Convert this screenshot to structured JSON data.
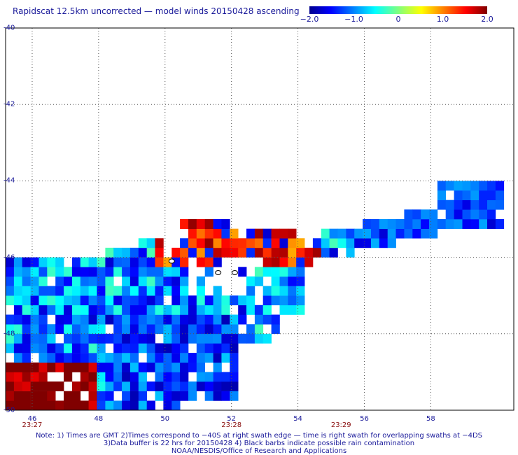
{
  "title": "Rapidscat 12.5km uncorrected — model winds 20150428 ascending",
  "colorbar": {
    "ticks": [
      {
        "value": -2.0,
        "label": "−2.0"
      },
      {
        "value": -1.0,
        "label": "−1.0"
      },
      {
        "value": 0,
        "label": "0"
      },
      {
        "value": 1.0,
        "label": "1.0"
      },
      {
        "value": 2.0,
        "label": "2.0"
      }
    ],
    "range": [
      -2.0,
      2.0
    ],
    "colormap": "jet"
  },
  "map": {
    "lon_range": [
      45.2,
      60.5
    ],
    "lat_range": [
      -50.0,
      -40.0
    ],
    "lat_ticks": [
      {
        "value": -40,
        "label": "-40"
      },
      {
        "value": -42,
        "label": "-42"
      },
      {
        "value": -44,
        "label": "-44"
      },
      {
        "value": -46,
        "label": "-46"
      },
      {
        "value": -48,
        "label": "-48"
      },
      {
        "value": -50,
        "label": "-50"
      }
    ],
    "lon_ticks": [
      {
        "value": 46,
        "label": "46"
      },
      {
        "value": 48,
        "label": "48"
      },
      {
        "value": 50,
        "label": "50"
      },
      {
        "value": 52,
        "label": "52"
      },
      {
        "value": 54,
        "label": "54"
      },
      {
        "value": 56,
        "label": "56"
      },
      {
        "value": 58,
        "label": "58"
      }
    ],
    "time_labels": [
      {
        "lon": 46,
        "label": "23:27"
      },
      {
        "lon": 52,
        "label": "23:28"
      },
      {
        "lon": 55.3,
        "label": "23:29"
      }
    ],
    "grid": true,
    "cell_size_deg": 0.25
  },
  "notes": [
    "Note: 1) Times are GMT 2)Times correspond to −40S at right swath edge — time is right swath for overlapping swaths at −4DS",
    "3)Data buffer is 22 hrs for 20150428 4) Black barbs indicate possible rain contamination",
    "NOAA/NESDIS/Office of Research and Applications"
  ]
}
